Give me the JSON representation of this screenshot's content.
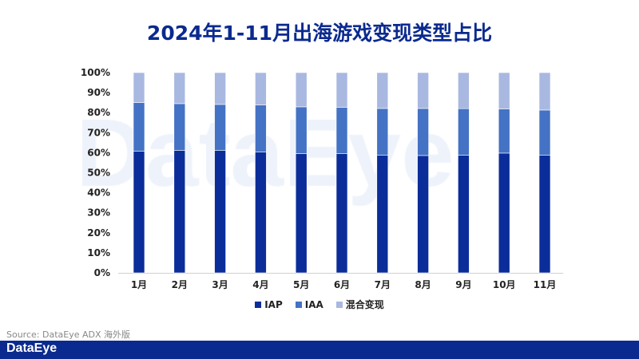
{
  "chart_data": {
    "type": "bar",
    "stacked": true,
    "title": "2024年1-11月出海游戏变现类型占比",
    "categories": [
      "1月",
      "2月",
      "3月",
      "4月",
      "5月",
      "6月",
      "7月",
      "8月",
      "9月",
      "10月",
      "11月"
    ],
    "series": [
      {
        "name": "IAP",
        "color": "#0b2d9a",
        "values": [
          60.7,
          61.2,
          61.1,
          60.3,
          59.6,
          59.5,
          58.7,
          58.6,
          58.8,
          59.8,
          58.7
        ]
      },
      {
        "name": "IAA",
        "color": "#4472c4",
        "values": [
          24.3,
          23.3,
          23.0,
          23.5,
          23.3,
          23.2,
          23.4,
          23.5,
          23.2,
          22.0,
          22.6
        ]
      },
      {
        "name": "混合变现",
        "color": "#a9b8e0",
        "values": [
          15.0,
          15.5,
          15.9,
          16.2,
          17.1,
          17.3,
          17.9,
          17.9,
          18.0,
          18.2,
          18.7
        ]
      }
    ],
    "yticks": [
      "0%",
      "10%",
      "20%",
      "30%",
      "40%",
      "50%",
      "60%",
      "70%",
      "80%",
      "90%",
      "100%"
    ],
    "ylim": [
      0,
      100
    ],
    "grid": false,
    "legend": "bottom"
  },
  "source": "Source: DataEye ADX 海外版",
  "watermark": "DataEye",
  "logo": "DataEye"
}
